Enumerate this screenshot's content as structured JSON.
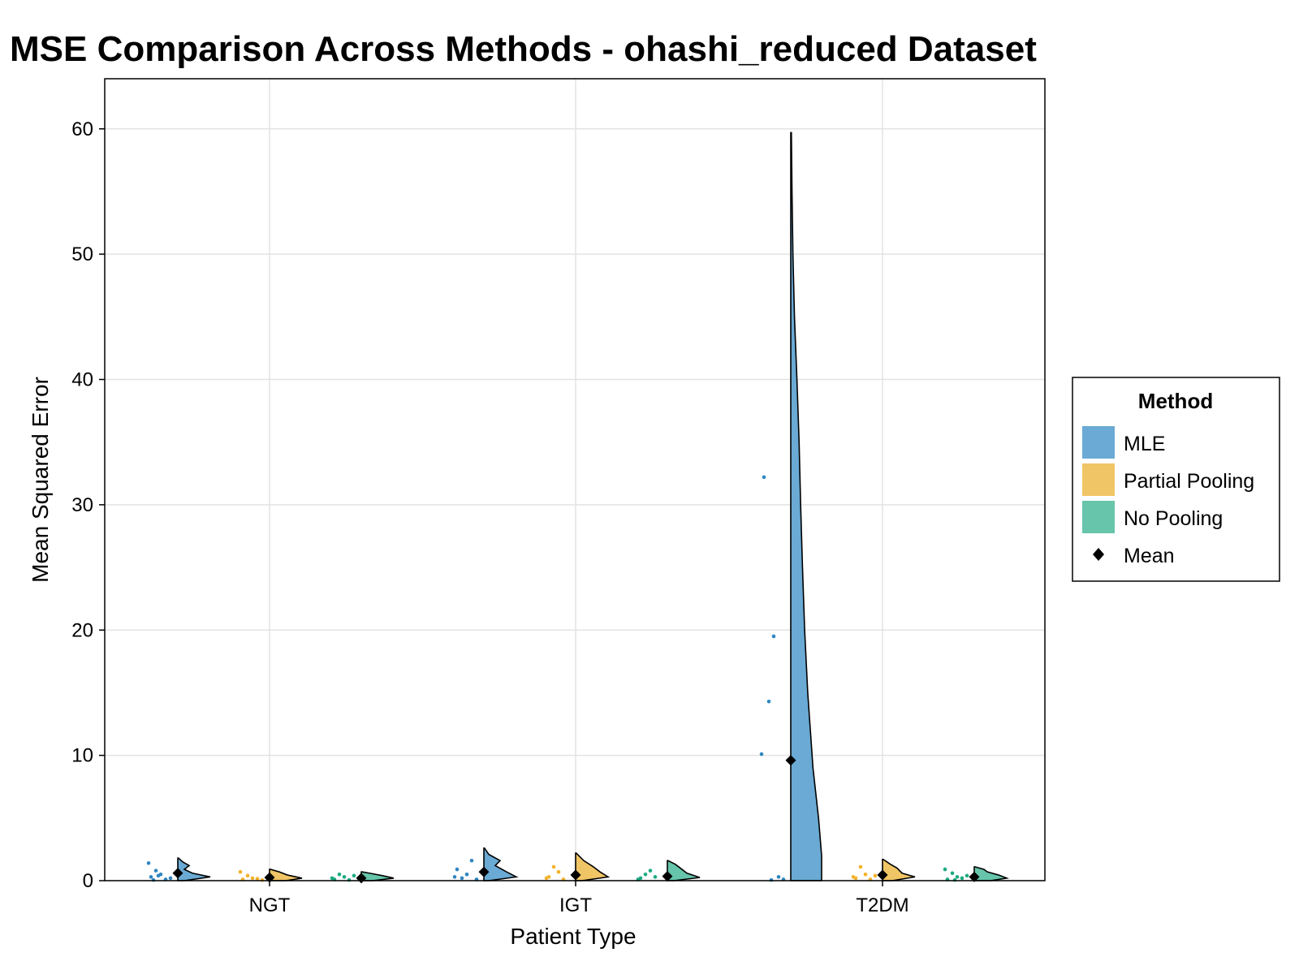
{
  "chart_data": {
    "type": "violin",
    "title": "MSE Comparison Across Methods - ohashi_reduced Dataset",
    "xlabel": "Patient Type",
    "ylabel": "Mean Squared Error",
    "categories": [
      "NGT",
      "IGT",
      "T2DM"
    ],
    "ylim": [
      0,
      64
    ],
    "yticks": [
      0,
      10,
      20,
      30,
      40,
      50,
      60
    ],
    "grid": true,
    "legend": {
      "title": "Method",
      "position": "right",
      "entries": [
        "MLE",
        "Partial Pooling",
        "No Pooling",
        "Mean"
      ]
    },
    "series": [
      {
        "name": "MLE",
        "color": "#6aaad4",
        "point_color": "#2e86c1",
        "groups": [
          {
            "category": "NGT",
            "mean": 0.6,
            "max": 1.8,
            "points": [
              0.3,
              0.5,
              0.8,
              1.4,
              0.1,
              0.2,
              0.4,
              0.05
            ],
            "density": [
              [
                0,
                0.2
              ],
              [
                0.3,
                1.0
              ],
              [
                0.6,
                0.45
              ],
              [
                0.9,
                0.2
              ],
              [
                1.2,
                0.35
              ],
              [
                1.5,
                0.15
              ],
              [
                1.8,
                0.02
              ]
            ]
          },
          {
            "category": "IGT",
            "mean": 0.7,
            "max": 2.6,
            "points": [
              0.9,
              0.5,
              0.2,
              0.3,
              1.6,
              0.1
            ],
            "density": [
              [
                0,
                0.15
              ],
              [
                0.3,
                1.0
              ],
              [
                0.7,
                0.7
              ],
              [
                1.2,
                0.35
              ],
              [
                1.6,
                0.5
              ],
              [
                2.1,
                0.15
              ],
              [
                2.6,
                0.02
              ]
            ]
          },
          {
            "category": "T2DM",
            "mean": 9.6,
            "max": 59.7,
            "points": [
              32.2,
              19.5,
              14.3,
              10.1,
              0.3,
              0.1,
              0.05
            ],
            "density": [
              [
                0,
                1.0
              ],
              [
                2,
                1.0
              ],
              [
                5,
                0.9
              ],
              [
                9,
                0.72
              ],
              [
                15,
                0.55
              ],
              [
                20,
                0.45
              ],
              [
                25,
                0.38
              ],
              [
                30,
                0.32
              ],
              [
                35,
                0.27
              ],
              [
                40,
                0.2
              ],
              [
                45,
                0.12
              ],
              [
                50,
                0.07
              ],
              [
                55,
                0.04
              ],
              [
                59.7,
                0.02
              ]
            ]
          }
        ]
      },
      {
        "name": "Partial Pooling",
        "color": "#f0c566",
        "point_color": "#f3b229",
        "groups": [
          {
            "category": "NGT",
            "mean": 0.25,
            "max": 0.9,
            "points": [
              0.1,
              0.2,
              0.4,
              0.7,
              0.15,
              0.05
            ],
            "density": [
              [
                0,
                0.5
              ],
              [
                0.2,
                1.0
              ],
              [
                0.45,
                0.55
              ],
              [
                0.7,
                0.3
              ],
              [
                0.9,
                0.03
              ]
            ]
          },
          {
            "category": "IGT",
            "mean": 0.45,
            "max": 2.2,
            "points": [
              0.3,
              0.7,
              1.1,
              0.2,
              0.1
            ],
            "density": [
              [
                0,
                0.2
              ],
              [
                0.3,
                1.0
              ],
              [
                0.7,
                0.75
              ],
              [
                1.1,
                0.55
              ],
              [
                1.6,
                0.25
              ],
              [
                2.2,
                0.02
              ]
            ]
          },
          {
            "category": "T2DM",
            "mean": 0.45,
            "max": 1.7,
            "points": [
              0.2,
              0.5,
              1.1,
              0.3,
              0.1,
              0.4
            ],
            "density": [
              [
                0,
                0.3
              ],
              [
                0.3,
                1.0
              ],
              [
                0.6,
                0.6
              ],
              [
                1.0,
                0.45
              ],
              [
                1.3,
                0.25
              ],
              [
                1.7,
                0.02
              ]
            ]
          }
        ]
      },
      {
        "name": "No Pooling",
        "color": "#66c5ab",
        "point_color": "#1aaa80",
        "groups": [
          {
            "category": "NGT",
            "mean": 0.2,
            "max": 0.7,
            "points": [
              0.1,
              0.3,
              0.5,
              0.2,
              0.05,
              0.4
            ],
            "density": [
              [
                0,
                0.35
              ],
              [
                0.2,
                1.0
              ],
              [
                0.4,
                0.65
              ],
              [
                0.6,
                0.25
              ],
              [
                0.7,
                0.03
              ]
            ]
          },
          {
            "category": "IGT",
            "mean": 0.35,
            "max": 1.6,
            "points": [
              0.2,
              0.8,
              0.5,
              0.1,
              0.3
            ],
            "density": [
              [
                0,
                0.2
              ],
              [
                0.25,
                1.0
              ],
              [
                0.6,
                0.6
              ],
              [
                1.0,
                0.4
              ],
              [
                1.3,
                0.25
              ],
              [
                1.6,
                0.02
              ]
            ]
          },
          {
            "category": "T2DM",
            "mean": 0.3,
            "max": 1.1,
            "points": [
              0.1,
              0.3,
              0.6,
              0.9,
              0.2,
              0.4,
              0.05
            ],
            "density": [
              [
                0,
                0.5
              ],
              [
                0.2,
                1.0
              ],
              [
                0.45,
                0.75
              ],
              [
                0.7,
                0.4
              ],
              [
                0.9,
                0.3
              ],
              [
                1.1,
                0.03
              ]
            ]
          }
        ]
      }
    ],
    "mean_marker": {
      "label": "Mean",
      "color": "#000000",
      "shape": "diamond"
    }
  }
}
